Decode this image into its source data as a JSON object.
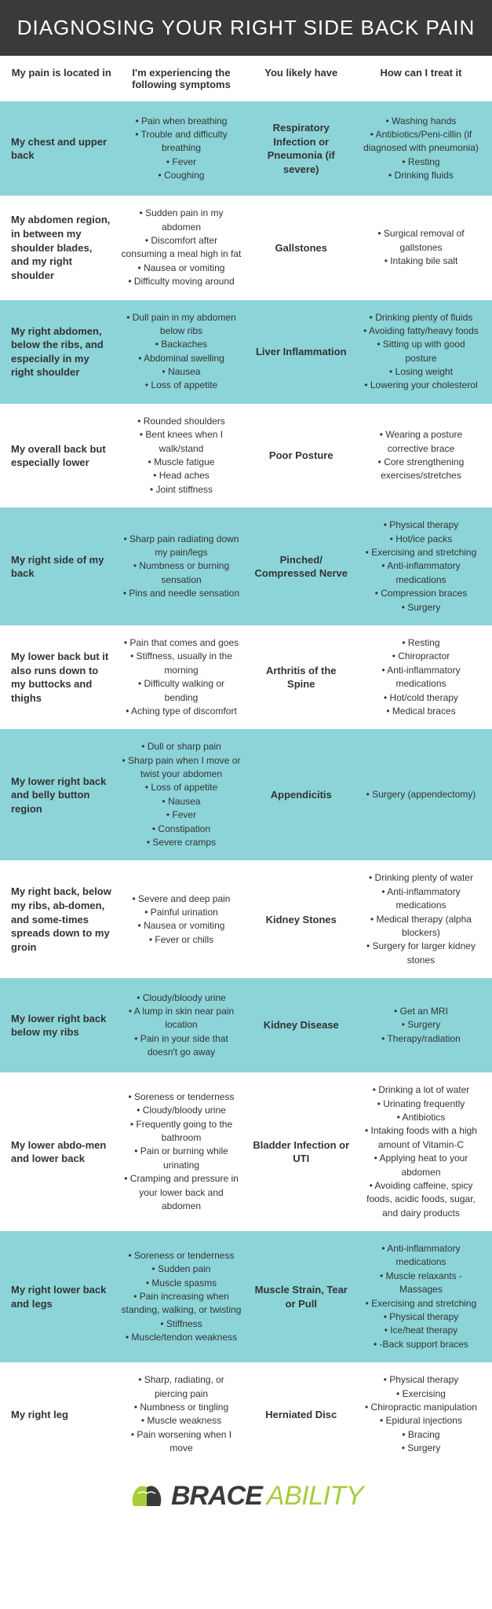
{
  "title": "DIAGNOSING YOUR RIGHT SIDE BACK PAIN",
  "columns": {
    "c1": "My pain is located in",
    "c2": "I'm experiencing the following symptoms",
    "c3": "You likely have",
    "c4": "How can I treat it"
  },
  "colors": {
    "header_bg": "#3a3a3a",
    "alt_row_bg": "#8cd4d8",
    "text": "#333333",
    "brand_dark": "#3a3a3a",
    "brand_green": "#a6ce39"
  },
  "rows": [
    {
      "location": "My chest and upper back",
      "symptoms": [
        "Pain when breathing",
        "Trouble and difficulty breathing",
        "Fever",
        "Coughing"
      ],
      "diagnosis": "Respiratory Infection or Pneumonia (if severe)",
      "treatment": [
        "Washing hands",
        "Antibiotics/Peni-cillin (if diagnosed with pneumonia)",
        "Resting",
        "Drinking fluids"
      ]
    },
    {
      "location": "My abdomen region, in between my shoulder blades, and my right shoulder",
      "symptoms": [
        "Sudden pain in my abdomen",
        "Discomfort after consuming a meal high in fat",
        "Nausea or vomiting",
        "Difficulty moving around"
      ],
      "diagnosis": "Gallstones",
      "treatment": [
        "Surgical removal of gallstones",
        "Intaking bile salt"
      ]
    },
    {
      "location": "My right abdomen, below the ribs, and especially in my right shoulder",
      "symptoms": [
        "Dull pain in my abdomen below ribs",
        "Backaches",
        "Abdominal swelling",
        "Nausea",
        "Loss of appetite"
      ],
      "diagnosis": "Liver Inflammation",
      "treatment": [
        "Drinking plenty of fluids",
        "Avoiding fatty/heavy foods",
        "Sitting up with good posture",
        "Losing weight",
        "Lowering your cholesterol"
      ]
    },
    {
      "location": "My overall back but especially lower",
      "symptoms": [
        "Rounded shoulders",
        "Bent knees when I walk/stand",
        "Muscle fatigue",
        "Head aches",
        "Joint stiffness"
      ],
      "diagnosis": "Poor Posture",
      "treatment": [
        "Wearing a posture corrective brace",
        "Core strengthening exercises/stretches"
      ]
    },
    {
      "location": "My right side of my back",
      "symptoms": [
        "Sharp pain radiating down my pain/legs",
        "Numbness or burning sensation",
        "Pins and needle sensation"
      ],
      "diagnosis": "Pinched/ Compressed Nerve",
      "treatment": [
        "Physical therapy",
        "Hot/ice packs",
        "Exercising and stretching",
        "Anti-inflammatory medications",
        "Compression braces",
        "Surgery"
      ]
    },
    {
      "location": "My lower back but it also runs down to my buttocks and thighs",
      "symptoms": [
        "Pain that comes and goes",
        "Stiffness, usually in the morning",
        "Difficulty walking or bending",
        "Aching type of discomfort"
      ],
      "diagnosis": "Arthritis of the Spine",
      "treatment": [
        "Resting",
        "Chiropractor",
        "Anti-inflammatory medications",
        "Hot/cold therapy",
        "Medical braces"
      ]
    },
    {
      "location": "My lower right back and belly button region",
      "symptoms": [
        "Dull or sharp pain",
        "Sharp pain when I move or twist your abdomen",
        "Loss of appetite",
        "Nausea",
        "Fever",
        "Constipation",
        "Severe cramps"
      ],
      "diagnosis": "Appendicitis",
      "treatment": [
        "Surgery (appendectomy)"
      ]
    },
    {
      "location": "My right back, below my ribs, ab-domen, and some-times spreads down to my groin",
      "symptoms": [
        "Severe and deep pain",
        "Painful urination",
        "Nausea or vomiting",
        "Fever or chills"
      ],
      "diagnosis": "Kidney Stones",
      "treatment": [
        "Drinking plenty of water",
        "Anti-inflammatory medications",
        "Medical therapy (alpha blockers)",
        "Surgery for larger kidney stones"
      ]
    },
    {
      "location": "My lower right back below my ribs",
      "symptoms": [
        "Cloudy/bloody urine",
        "A lump in skin near pain location",
        "Pain in your side that doesn't go away"
      ],
      "diagnosis": "Kidney Disease",
      "treatment": [
        "Get an MRI",
        "Surgery",
        "Therapy/radiation"
      ]
    },
    {
      "location": "My lower abdo-men and lower back",
      "symptoms": [
        "Soreness or tenderness",
        "Cloudy/bloody urine",
        "Frequently going to the bathroom",
        "Pain or burning while urinating",
        "Cramping and pressure in your lower back and abdomen"
      ],
      "diagnosis": "Bladder Infection or UTI",
      "treatment": [
        "Drinking a lot of water",
        "Urinating frequently",
        "Antibiotics",
        "Intaking foods with a high amount of Vitamin-C",
        "Applying heat to your abdomen",
        "Avoiding caffeine, spicy foods, acidic foods, sugar, and dairy products"
      ]
    },
    {
      "location": "My right lower back and legs",
      "symptoms": [
        "Soreness or tenderness",
        "Sudden pain",
        "Muscle spasms",
        "Pain increasing when standing, walking, or twisting",
        "Stiffness",
        "Muscle/tendon weakness"
      ],
      "diagnosis": "Muscle Strain, Tear or Pull",
      "treatment": [
        "Anti-inflammatory medications",
        "Muscle relaxants -Massages",
        "Exercising and stretching",
        "Physical therapy",
        "Ice/heat therapy",
        "-Back support braces"
      ]
    },
    {
      "location": "My right leg",
      "symptoms": [
        "Sharp, radiating, or piercing pain",
        "Numbness or tingling",
        "Muscle weakness",
        "Pain worsening when I move"
      ],
      "diagnosis": "Herniated Disc",
      "treatment": [
        "Physical therapy",
        "Exercising",
        "Chiropractic manipulation",
        "Epidural injections",
        "Bracing",
        "Surgery"
      ]
    }
  ],
  "brand": {
    "part1": "BRACE",
    "part2": "ABILITY"
  }
}
